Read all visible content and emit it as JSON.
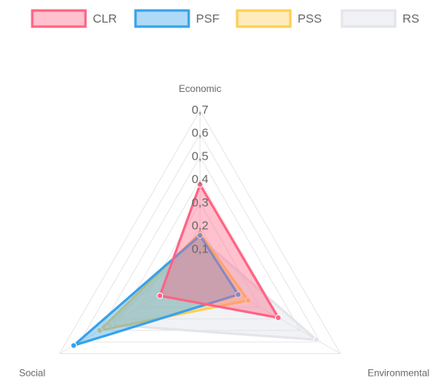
{
  "chart_data": {
    "type": "radar",
    "categories": [
      "Economic",
      "Environmental",
      "Social"
    ],
    "series": [
      {
        "name": "CLR",
        "color": "#ff6384",
        "fill": "rgba(255,99,132,0.4)",
        "values": [
          0.38,
          0.39,
          0.2
        ]
      },
      {
        "name": "PSF",
        "color": "#36a2eb",
        "fill": "rgba(54,162,235,0.4)",
        "values": [
          0.16,
          0.19,
          0.63
        ]
      },
      {
        "name": "PSS",
        "color": "#ffce56",
        "fill": "rgba(255,206,86,0.4)",
        "values": [
          0.17,
          0.24,
          0.5
        ]
      },
      {
        "name": "RS",
        "color": "#e4e5ea",
        "fill": "rgba(225,227,233,0.45)",
        "values": [
          0.15,
          0.58,
          0.45
        ]
      }
    ],
    "ylim": [
      0,
      0.7
    ],
    "yticks": [
      {
        "value": 0.1,
        "label": "0,1"
      },
      {
        "value": 0.2,
        "label": "0,2"
      },
      {
        "value": 0.3,
        "label": "0,3"
      },
      {
        "value": 0.4,
        "label": "0,4"
      },
      {
        "value": 0.5,
        "label": "0,5"
      },
      {
        "value": 0.6,
        "label": "0,6"
      },
      {
        "value": 0.7,
        "label": "0,7"
      }
    ],
    "grid": true
  }
}
